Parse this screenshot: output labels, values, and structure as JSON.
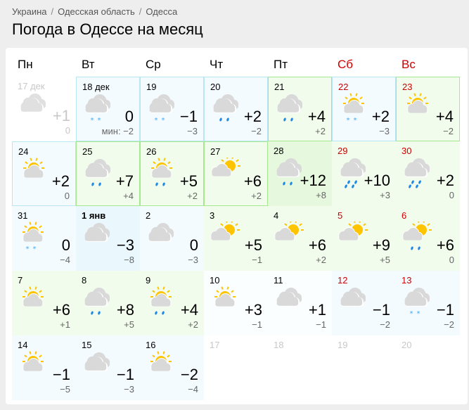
{
  "breadcrumb": [
    "Украина",
    "Одесская область",
    "Одесса"
  ],
  "title": "Погода в Одессе на месяц",
  "weekdays": [
    {
      "label": "Пн"
    },
    {
      "label": "Вт"
    },
    {
      "label": "Ср"
    },
    {
      "label": "Чт"
    },
    {
      "label": "Пт"
    },
    {
      "label": "Сб",
      "weekend": true
    },
    {
      "label": "Вс",
      "weekend": true
    }
  ],
  "colors": {
    "weekend": "#cc0000",
    "cold_bg": "#f4fbff",
    "warm_bg": "#f2fcec",
    "snow": "#3fa9f5",
    "rain": "#1e88e5",
    "sun": "#ffc400",
    "cloud": "#d9d9d9"
  },
  "min_prefix": "мин: ",
  "days": [
    {
      "date": "17 дек",
      "max": "+1",
      "min": "0",
      "icon": "cloudy",
      "tone": "",
      "dim": true
    },
    {
      "date": "18 дек",
      "max": "0",
      "min": "−2",
      "icon": "cloudy-snow",
      "tone": "cold",
      "border": "cold",
      "show_min_label": true
    },
    {
      "date": "19",
      "max": "−1",
      "min": "−3",
      "icon": "cloudy-snow",
      "tone": "cold",
      "border": "cold"
    },
    {
      "date": "20",
      "max": "+2",
      "min": "−2",
      "icon": "cloudy-rain",
      "tone": "cold",
      "border": "cold"
    },
    {
      "date": "21",
      "max": "+4",
      "min": "+2",
      "icon": "cloudy-rain",
      "tone": "warm",
      "border": "warm"
    },
    {
      "date": "22",
      "max": "+2",
      "min": "−3",
      "icon": "sun-cloud-snow",
      "tone": "cold",
      "border": "cold",
      "weekend": true
    },
    {
      "date": "23",
      "max": "+4",
      "min": "−2",
      "icon": "sun-cloud",
      "tone": "warm",
      "border": "warm",
      "weekend": true
    },
    {
      "date": "24",
      "max": "+2",
      "min": "0",
      "icon": "sun-cloud",
      "tone": "cold",
      "border": "cold"
    },
    {
      "date": "25",
      "max": "+7",
      "min": "+4",
      "icon": "cloudy-rain",
      "tone": "warm",
      "border": "warm"
    },
    {
      "date": "26",
      "max": "+5",
      "min": "+2",
      "icon": "sun-cloud-rain",
      "tone": "warm",
      "border": "warm"
    },
    {
      "date": "27",
      "max": "+6",
      "min": "+2",
      "icon": "partly-cloudy",
      "tone": "warm",
      "border": "warm"
    },
    {
      "date": "28",
      "max": "+12",
      "min": "+8",
      "icon": "cloudy-rain",
      "tone": "warm2"
    },
    {
      "date": "29",
      "max": "+10",
      "min": "+3",
      "icon": "cloudy-heavy-rain",
      "tone": "warm",
      "weekend": true
    },
    {
      "date": "30",
      "max": "+2",
      "min": "0",
      "icon": "cloudy-heavy-rain",
      "tone": "warm",
      "weekend": true
    },
    {
      "date": "31",
      "max": "0",
      "min": "−4",
      "icon": "sun-cloud-snow",
      "tone": "cold"
    },
    {
      "date": "1 янв",
      "max": "−3",
      "min": "−8",
      "icon": "cloudy",
      "tone": "cold2",
      "bold": true
    },
    {
      "date": "2",
      "max": "0",
      "min": "−3",
      "icon": "cloudy",
      "tone": "cold"
    },
    {
      "date": "3",
      "max": "+5",
      "min": "−1",
      "icon": "partly-cloudy",
      "tone": "warm"
    },
    {
      "date": "4",
      "max": "+6",
      "min": "+2",
      "icon": "partly-cloudy",
      "tone": "warm"
    },
    {
      "date": "5",
      "max": "+9",
      "min": "+5",
      "icon": "partly-cloudy",
      "tone": "warm",
      "weekend": true
    },
    {
      "date": "6",
      "max": "+6",
      "min": "0",
      "icon": "partly-cloudy-rain",
      "tone": "warm",
      "weekend": true
    },
    {
      "date": "7",
      "max": "+6",
      "min": "+1",
      "icon": "sun-cloud",
      "tone": "warm"
    },
    {
      "date": "8",
      "max": "+8",
      "min": "+5",
      "icon": "cloudy-rain",
      "tone": "warm"
    },
    {
      "date": "9",
      "max": "+4",
      "min": "+2",
      "icon": "sun-cloud-rain",
      "tone": "warm"
    },
    {
      "date": "10",
      "max": "+3",
      "min": "−1",
      "icon": "sun-cloud",
      "tone": "none"
    },
    {
      "date": "11",
      "max": "+1",
      "min": "−1",
      "icon": "cloudy",
      "tone": "none"
    },
    {
      "date": "12",
      "max": "−1",
      "min": "−2",
      "icon": "cloudy",
      "tone": "cold",
      "weekend": true
    },
    {
      "date": "13",
      "max": "−1",
      "min": "−2",
      "icon": "cloudy-snow",
      "tone": "cold",
      "weekend": true
    },
    {
      "date": "14",
      "max": "−1",
      "min": "−5",
      "icon": "sun-cloud",
      "tone": "cold"
    },
    {
      "date": "15",
      "max": "−1",
      "min": "−3",
      "icon": "cloudy",
      "tone": "cold"
    },
    {
      "date": "16",
      "max": "−2",
      "min": "−4",
      "icon": "sun-cloud",
      "tone": "cold"
    },
    {
      "date": "17",
      "dim": true,
      "empty": true
    },
    {
      "date": "18",
      "dim": true,
      "empty": true
    },
    {
      "date": "19",
      "dim": true,
      "empty": true
    },
    {
      "date": "20",
      "dim": true,
      "empty": true
    }
  ]
}
